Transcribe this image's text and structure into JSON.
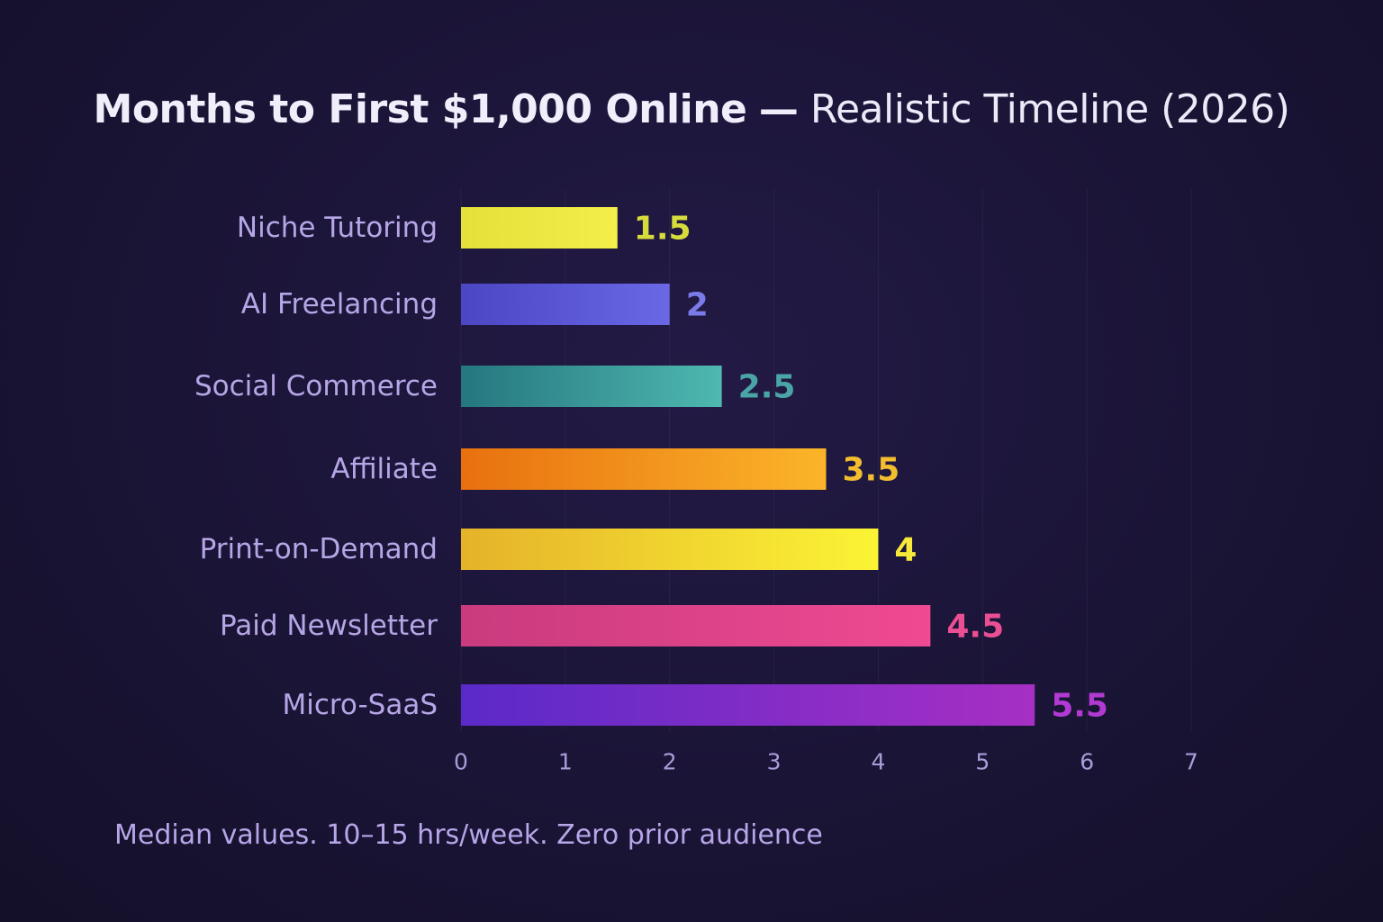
{
  "chart_data": {
    "type": "bar",
    "orientation": "horizontal",
    "title": "Months to First $1,000 Online",
    "title_separator": "—",
    "subtitle": "Realistic Timeline (2026)",
    "categories": [
      "Niche Tutoring",
      "AI Freelancing",
      "Social Commerce",
      "Affiliate",
      "Print-on-Demand",
      "Paid Newsletter",
      "Micro-SaaS"
    ],
    "values": [
      1.5,
      2,
      2.5,
      3.5,
      4,
      4.5,
      5.5
    ],
    "value_labels": [
      "1.5",
      "2",
      "2.5",
      "3.5",
      "4",
      "4.5",
      "5.5"
    ],
    "xlim": [
      0,
      7
    ],
    "x_ticks": [
      0,
      1,
      2,
      3,
      4,
      5,
      6,
      7
    ],
    "xlabel": "",
    "ylabel": "",
    "grid": "vertical, faint",
    "legend": "none",
    "colors": {
      "bars": [
        [
          "#e6e03a",
          "#f3ee4a"
        ],
        [
          "#4b46c4",
          "#6a68e4"
        ],
        [
          "#25767e",
          "#4fb8b0"
        ],
        [
          "#e8700f",
          "#fbb52a"
        ],
        [
          "#e5b22a",
          "#fbf435"
        ],
        [
          "#c93b7e",
          "#ef4a92"
        ],
        [
          "#5a2ac8",
          "#a72fc4"
        ]
      ],
      "value_labels": [
        "#d6dc3c",
        "#7a7be8",
        "#4aa5a6",
        "#f2bd2e",
        "#f6e93a",
        "#ea4f94",
        "#b23ad2"
      ],
      "category_labels": "#b6a6e6",
      "tick_labels": "#a99cd8"
    }
  },
  "footnote": "Median values. 10–15 hrs/week. Zero prior audience"
}
